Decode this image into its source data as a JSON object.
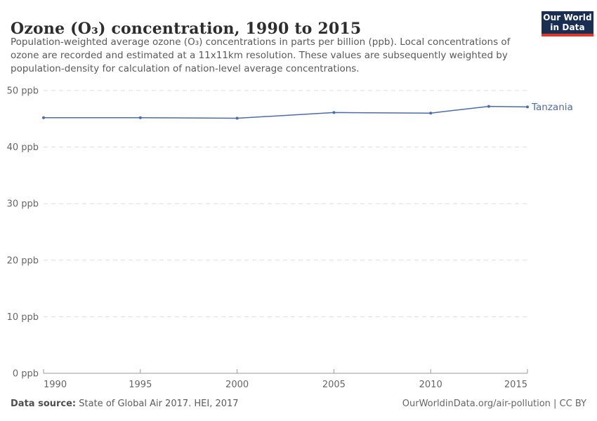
{
  "header": {
    "title": "Ozone (O₃) concentration, 1990 to 2015",
    "subtitle_lines": {
      "line1": "Population-weighted average ozone (O₃) concentrations in parts per billion (ppb). Local concentrations of",
      "line2": "ozone are recorded and estimated at a 11x11km resolution. These values are subsequently weighted by",
      "line3": "population-density for calculation of nation-level average concentrations."
    },
    "logo": {
      "line1": "Our World",
      "line2": "in Data"
    }
  },
  "chart_data": {
    "type": "line",
    "title": "Ozone (O₃) concentration, 1990 to 2015",
    "x": [
      1990,
      1995,
      2000,
      2005,
      2010,
      2013,
      2015
    ],
    "series": [
      {
        "name": "Tanzania",
        "color": "#4c6ca8",
        "values": [
          45.2,
          45.2,
          45.1,
          46.1,
          46.0,
          47.2,
          47.1
        ]
      }
    ],
    "xlim": [
      1990,
      2015
    ],
    "ylim": [
      0,
      50
    ],
    "y_ticks": [
      0,
      10,
      20,
      30,
      40,
      50
    ],
    "y_tick_labels": [
      "0 ppb",
      "10 ppb",
      "20 ppb",
      "30 ppb",
      "40 ppb",
      "50 ppb"
    ],
    "x_tick_years": [
      1990,
      1995,
      2000,
      2005,
      2010,
      2015
    ],
    "x_tick_labels": [
      "1990",
      "1995",
      "2000",
      "2005",
      "2010",
      "2015"
    ],
    "grid": "horizontal-dashed",
    "legend_position": "end-of-line-label",
    "unit": "ppb"
  },
  "footer": {
    "source_label": "Data source:",
    "source_text": " State of Global Air 2017. HEI, 2017",
    "credit": "OurWorldinData.org/air-pollution | CC BY"
  },
  "colors": {
    "line": "#4c6ca8",
    "entity_label": "#4c6ca8",
    "gridline": "#dddddd",
    "axis": "#9a9a9a",
    "tick_text": "#666666",
    "title": "#2d2d2d",
    "subtitle": "#595959",
    "logo_bg": "#1a2e54",
    "logo_red": "#dc3a2d"
  }
}
